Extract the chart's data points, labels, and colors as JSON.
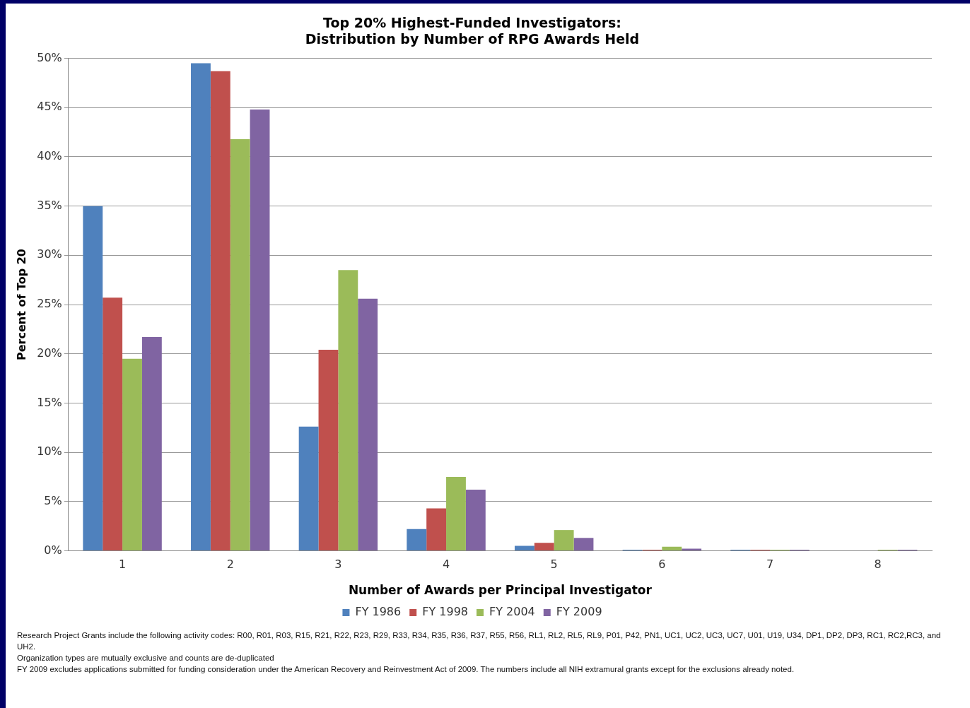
{
  "chart_data": {
    "type": "bar",
    "title": [
      "Top 20% Highest-Funded Investigators:",
      "Distribution by Number of RPG Awards Held"
    ],
    "xlabel": "Number of Awards per Principal Investigator",
    "ylabel": "Percent of Top 20",
    "categories": [
      "1",
      "2",
      "3",
      "4",
      "5",
      "6",
      "7",
      "8"
    ],
    "series": [
      {
        "name": "FY 1986",
        "color": "#4f81bd",
        "values": [
          35,
          49.5,
          12.6,
          2.2,
          0.5,
          0.1,
          0.1,
          0
        ]
      },
      {
        "name": "FY 1998",
        "color": "#c0504d",
        "values": [
          25.7,
          48.7,
          20.4,
          4.3,
          0.8,
          0.1,
          0.1,
          0
        ]
      },
      {
        "name": "FY 2004",
        "color": "#9bbb59",
        "values": [
          19.5,
          41.8,
          28.5,
          7.5,
          2.1,
          0.4,
          0.1,
          0.1
        ]
      },
      {
        "name": "FY 2009",
        "color": "#8064a2",
        "values": [
          21.7,
          44.8,
          25.6,
          6.2,
          1.3,
          0.2,
          0.1,
          0.1
        ]
      }
    ],
    "ylim": [
      0,
      50
    ],
    "yticks": [
      {
        "value": 0,
        "label": "0%"
      },
      {
        "value": 5,
        "label": "5%"
      },
      {
        "value": 10,
        "label": "10%"
      },
      {
        "value": 15,
        "label": "15%"
      },
      {
        "value": 20,
        "label": "20%"
      },
      {
        "value": 25,
        "label": "25%"
      },
      {
        "value": 30,
        "label": "30%"
      },
      {
        "value": 35,
        "label": "35%"
      },
      {
        "value": 40,
        "label": "40%"
      },
      {
        "value": 45,
        "label": "45%"
      },
      {
        "value": 50,
        "label": "50%"
      }
    ],
    "grid": "y",
    "legend": "bottom",
    "annotations": [
      "Research Project Grants include the following activity codes: R00, R01, R03, R15, R21, R22, R23, R29, R33, R34, R35, R36, R37, R55, R56, RL1, RL2, RL5, RL9, P01, P42, PN1, UC1, UC2, UC3, UC7, U01, U19, U34, DP1, DP2, DP3, RC1, RC2,RC3, and UH2.",
      "Organization types are mutually exclusive and counts are de-duplicated",
      "FY 2009 excludes applications submitted for funding consideration under the American Recovery and Reinvestment Act of 2009. The numbers include all NIH extramural grants except for the exclusions already noted."
    ]
  }
}
